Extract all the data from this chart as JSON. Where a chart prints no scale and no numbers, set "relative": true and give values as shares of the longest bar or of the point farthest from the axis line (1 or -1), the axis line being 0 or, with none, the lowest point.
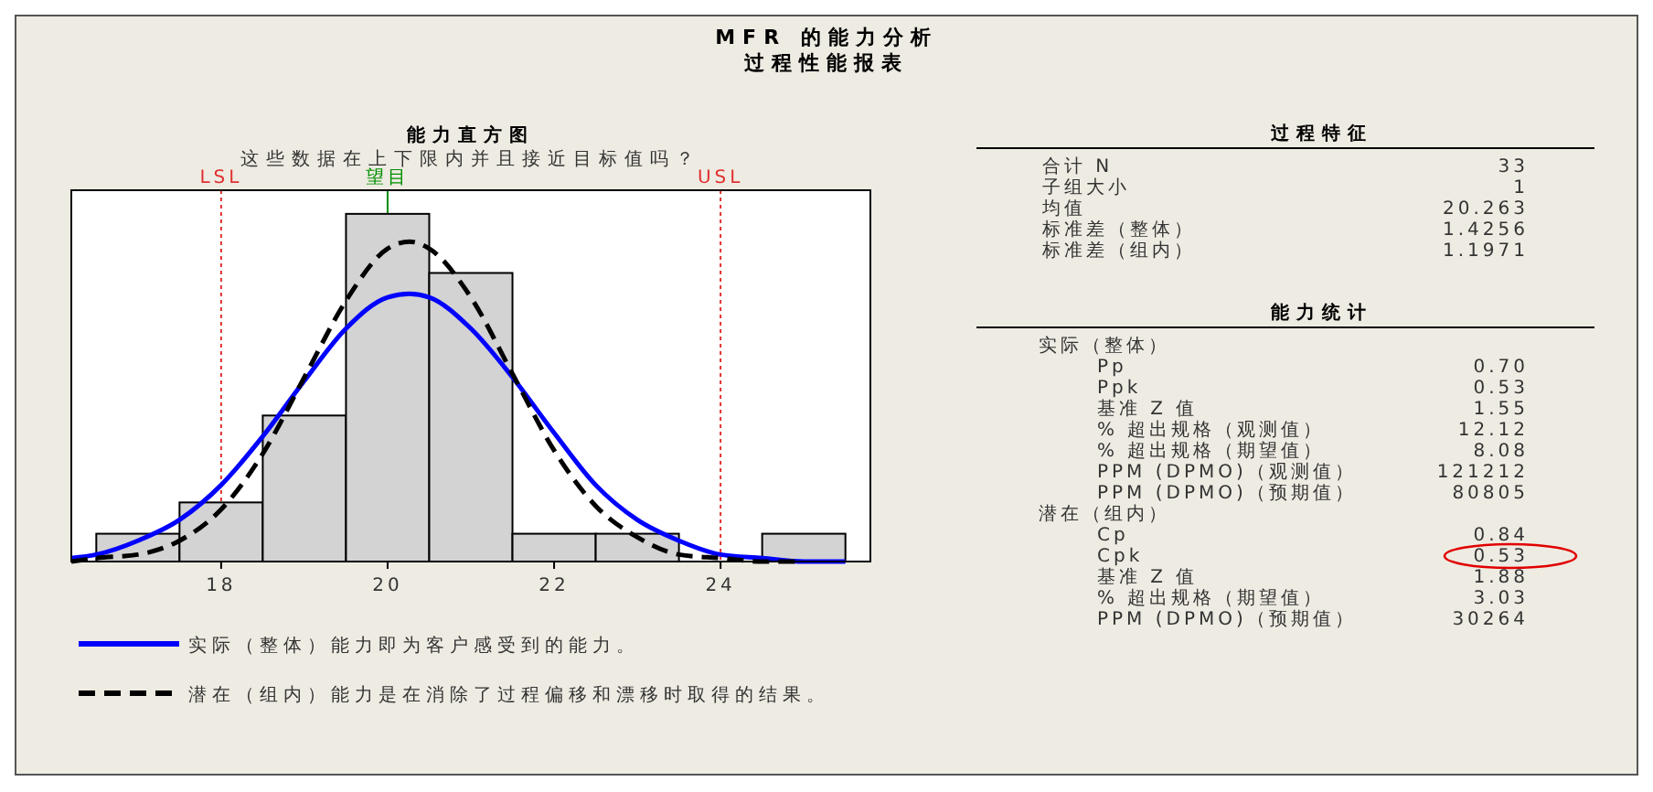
{
  "chart_data": [
    {
      "type": "other",
      "title": "MFR 的能力分析",
      "subtitle": "过程性能报表"
    },
    {
      "type": "histogram",
      "title": "能力直方图",
      "subtitle": "这些数据在上下限内并且接近目标值吗？",
      "relative": true,
      "bins": [
        16.5,
        17.5,
        18.5,
        19.5,
        20.5,
        21.5,
        22.5,
        23.5,
        24.5,
        25.5
      ],
      "values": [
        0.08,
        0.17,
        0.42,
        1,
        0.83,
        0.08,
        0.08,
        0,
        0.08
      ],
      "color": "#d3d3d3",
      "series": [
        {
          "type": "line",
          "name": "实际（整体）能力即为客户感受到的能力。",
          "color": "#0000ff",
          "line_style": "solid",
          "x": [
            16.2,
            16.5,
            17,
            17.5,
            18,
            18.5,
            19,
            19.5,
            20,
            20.263,
            20.5,
            21,
            21.5,
            22,
            22.5,
            23,
            23.5,
            24,
            24.5,
            25,
            25.5
          ],
          "values": [
            0.01,
            0.02,
            0.06,
            0.12,
            0.22,
            0.36,
            0.52,
            0.67,
            0.76,
            0.77,
            0.76,
            0.67,
            0.53,
            0.37,
            0.22,
            0.12,
            0.06,
            0.02,
            0.01,
            0,
            0
          ]
        },
        {
          "type": "line",
          "name": "潜在（组内）能力是在消除了过程偏移和漂移时取得的结果。",
          "color": "#000000",
          "line_style": "dashed",
          "x": [
            16.2,
            16.5,
            17,
            17.5,
            18,
            18.5,
            19,
            19.5,
            20,
            20.263,
            20.5,
            21,
            21.5,
            22,
            22.5,
            23,
            23.5,
            24,
            24.5,
            25
          ],
          "values": [
            0,
            0.01,
            0.02,
            0.06,
            0.15,
            0.31,
            0.53,
            0.75,
            0.9,
            0.92,
            0.9,
            0.76,
            0.54,
            0.32,
            0.16,
            0.07,
            0.02,
            0.01,
            0,
            0
          ]
        }
      ],
      "xlim": [
        16.2,
        25.8
      ],
      "xticks": [
        18,
        20,
        22,
        24
      ],
      "tick_labels": "x",
      "legend": "bottom",
      "ref_lines": [
        {
          "axis": "x",
          "value": 18,
          "label": "LSL",
          "color": "#e03030",
          "line_style": "dotted"
        },
        {
          "axis": "x",
          "value": 20,
          "label": "望目",
          "color": "#009000",
          "line_style": "solid"
        },
        {
          "axis": "x",
          "value": 24,
          "label": "USL",
          "color": "#e03030",
          "line_style": "dotted"
        }
      ]
    },
    {
      "type": "other",
      "title": "过程特征",
      "categories": [
        "合计 N",
        "子组大小",
        "均值",
        "标准差（整体）",
        "标准差（组内）"
      ],
      "values": [
        33,
        1,
        20.263,
        1.4256,
        1.1971
      ],
      "value_labels": [
        "33",
        "1",
        "20.263",
        "1.4256",
        "1.1971"
      ]
    },
    {
      "type": "other",
      "title": "能力统计",
      "categories": [
        "实际（整体）",
        "Pp",
        "Ppk",
        "基准 Z 值",
        "% 超出规格（观测值）",
        "% 超出规格（期望值）",
        "PPM (DPMO)（观测值）",
        "PPM (DPMO)（预期值）",
        "潜在（组内）",
        "Cp",
        "Cpk",
        "基准 Z 值",
        "% 超出规格（期望值）",
        "PPM (DPMO)（预期值）"
      ],
      "values": [
        null,
        0.7,
        0.53,
        1.55,
        12.12,
        8.08,
        121212,
        80805,
        null,
        0.84,
        0.53,
        1.88,
        3.03,
        30264
      ],
      "value_labels": [
        null,
        "0.70",
        "0.53",
        "1.55",
        "12.12",
        "8.08",
        "121212",
        "80805",
        null,
        "0.84",
        "0.53",
        "1.88",
        "3.03",
        "30264"
      ]
    }
  ]
}
